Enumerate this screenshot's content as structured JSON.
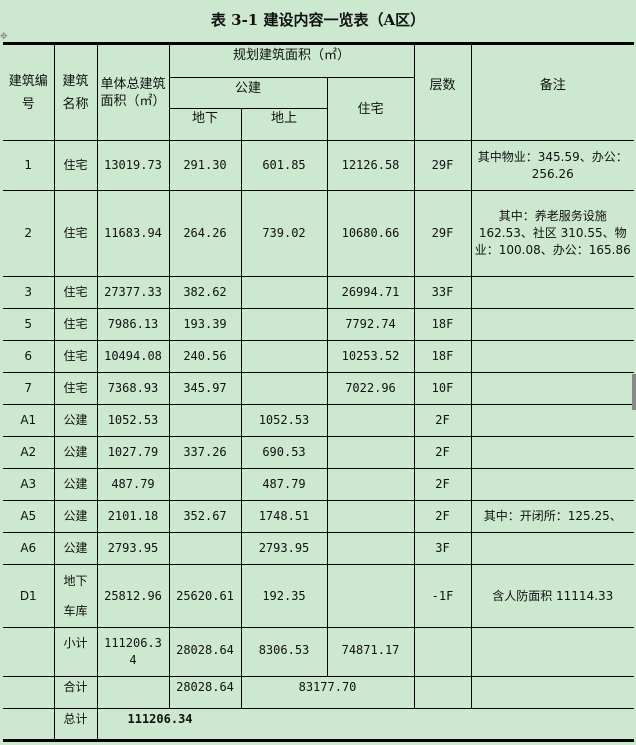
{
  "title": "表 3-1 建设内容一览表（A区）",
  "header": {
    "building_no": "建筑编号",
    "building_name": "建筑名称",
    "total_area": "单体总建筑面积（㎡）",
    "planned_area": "规划建筑面积（㎡）",
    "public": "公建",
    "underground": "地下",
    "aboveground": "地上",
    "residential": "住宅",
    "floors": "层数",
    "remarks": "备注"
  },
  "rows": [
    [
      "1",
      "住宅",
      "13019.73",
      "291.30",
      "601.85",
      "12126.58",
      "29F",
      "其中物业：345.59、办公：256.26"
    ],
    [
      "2",
      "住宅",
      "11683.94",
      "264.26",
      "739.02",
      "10680.66",
      "29F",
      "其中：养老服务设施162.53、社区 310.55、物业：100.08、办公：165.86"
    ],
    [
      "3",
      "住宅",
      "27377.33",
      "382.62",
      "",
      "26994.71",
      "33F",
      ""
    ],
    [
      "5",
      "住宅",
      "7986.13",
      "193.39",
      "",
      "7792.74",
      "18F",
      ""
    ],
    [
      "6",
      "住宅",
      "10494.08",
      "240.56",
      "",
      "10253.52",
      "18F",
      ""
    ],
    [
      "7",
      "住宅",
      "7368.93",
      "345.97",
      "",
      "7022.96",
      "10F",
      ""
    ],
    [
      "A1",
      "公建",
      "1052.53",
      "",
      "1052.53",
      "",
      "2F",
      ""
    ],
    [
      "A2",
      "公建",
      "1027.79",
      "337.26",
      "690.53",
      "",
      "2F",
      ""
    ],
    [
      "A3",
      "公建",
      "487.79",
      "",
      "487.79",
      "",
      "2F",
      ""
    ],
    [
      "A5",
      "公建",
      "2101.18",
      "352.67",
      "1748.51",
      "",
      "2F",
      "其中：开闭所：125.25、"
    ],
    [
      "A6",
      "公建",
      "2793.95",
      "",
      "2793.95",
      "",
      "3F",
      ""
    ],
    [
      "D1",
      "地下车库",
      "25812.96",
      "25620.61",
      "192.35",
      "",
      "-1F",
      "含人防面积 11114.33"
    ]
  ],
  "subtotal": {
    "label": "小计",
    "total": "111206.34",
    "underground": "28028.64",
    "aboveground": "8306.53",
    "residential": "74871.17"
  },
  "sum": {
    "label": "合计",
    "underground": "28028.64",
    "above_plus_res": "83177.70"
  },
  "grand_total": {
    "label": "总计",
    "value": "111206.34"
  }
}
